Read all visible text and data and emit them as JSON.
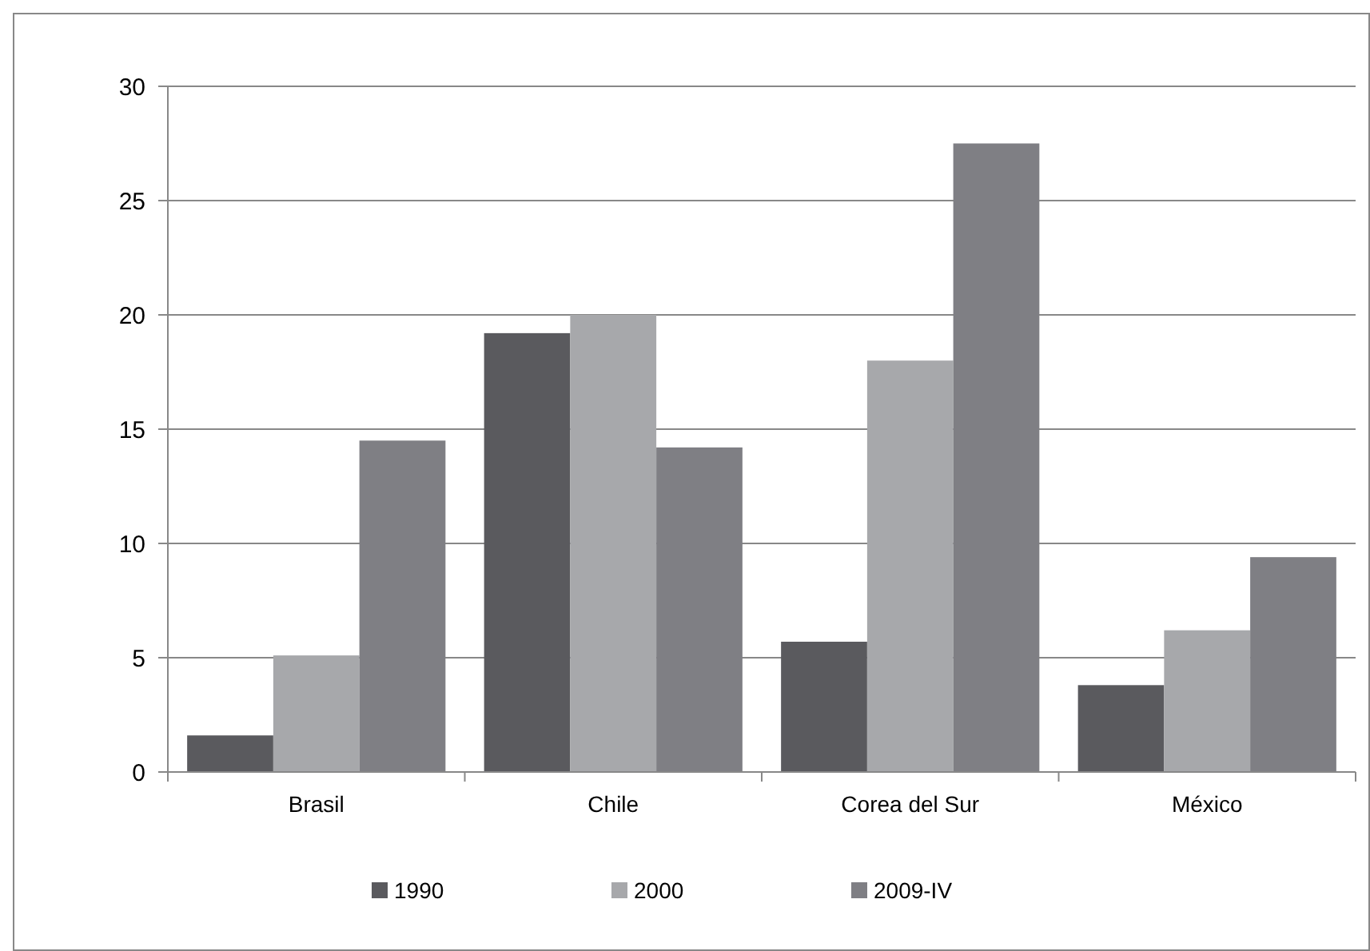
{
  "chart_data": {
    "type": "bar",
    "categories": [
      "Brasil",
      "Chile",
      "Corea del Sur",
      "México"
    ],
    "series": [
      {
        "name": "1990",
        "color": "#5a5a5e",
        "values": [
          1.6,
          19.2,
          5.7,
          3.8
        ]
      },
      {
        "name": "2000",
        "color": "#a7a8ab",
        "values": [
          5.1,
          20.0,
          18.0,
          6.2
        ]
      },
      {
        "name": "2009-IV",
        "color": "#7f7f84",
        "values": [
          14.5,
          14.2,
          27.5,
          9.4
        ]
      }
    ],
    "ylim": [
      0,
      30
    ],
    "yticks": [
      0,
      5,
      10,
      15,
      20,
      25,
      30
    ],
    "grid": "y",
    "legend": "bottom"
  }
}
